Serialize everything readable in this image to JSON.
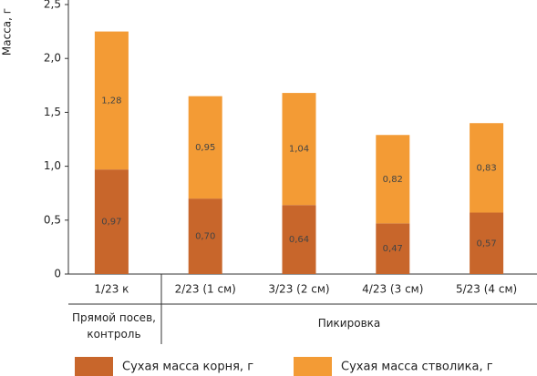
{
  "chart_data": {
    "type": "stacked_bar",
    "y_label": "Масса, г",
    "categories": [
      "1/23 к",
      "2/23 (1 см)",
      "3/23 (2 см)",
      "4/23 (3 см)",
      "5/23 (4 см)"
    ],
    "groups": [
      "Прямой посев, контроль",
      "Пикировка"
    ],
    "series": [
      {
        "name": "Сухая масса корня, г",
        "color": "#c8662b",
        "values": [
          0.97,
          0.7,
          0.64,
          0.47,
          0.57
        ],
        "value_labels": [
          "0,97",
          "0,70",
          "0,64",
          "0,47",
          "0,57"
        ]
      },
      {
        "name": "Сухая масса стволика, г",
        "color": "#f39b35",
        "values": [
          1.28,
          0.95,
          1.04,
          0.82,
          0.83
        ],
        "value_labels": [
          "1,28",
          "0,95",
          "1,04",
          "0,82",
          "0,83"
        ]
      }
    ],
    "ylim": [
      0,
      2.5
    ],
    "yticks": [
      0,
      {
        "value": 0.5,
        "label": "0,5"
      },
      {
        "value": 1.0,
        "label": "1,0"
      },
      {
        "value": 1.5,
        "label": "1,5"
      },
      {
        "value": 2.0,
        "label": "2,0"
      },
      {
        "value": 2.5,
        "label": "2,5"
      }
    ]
  }
}
